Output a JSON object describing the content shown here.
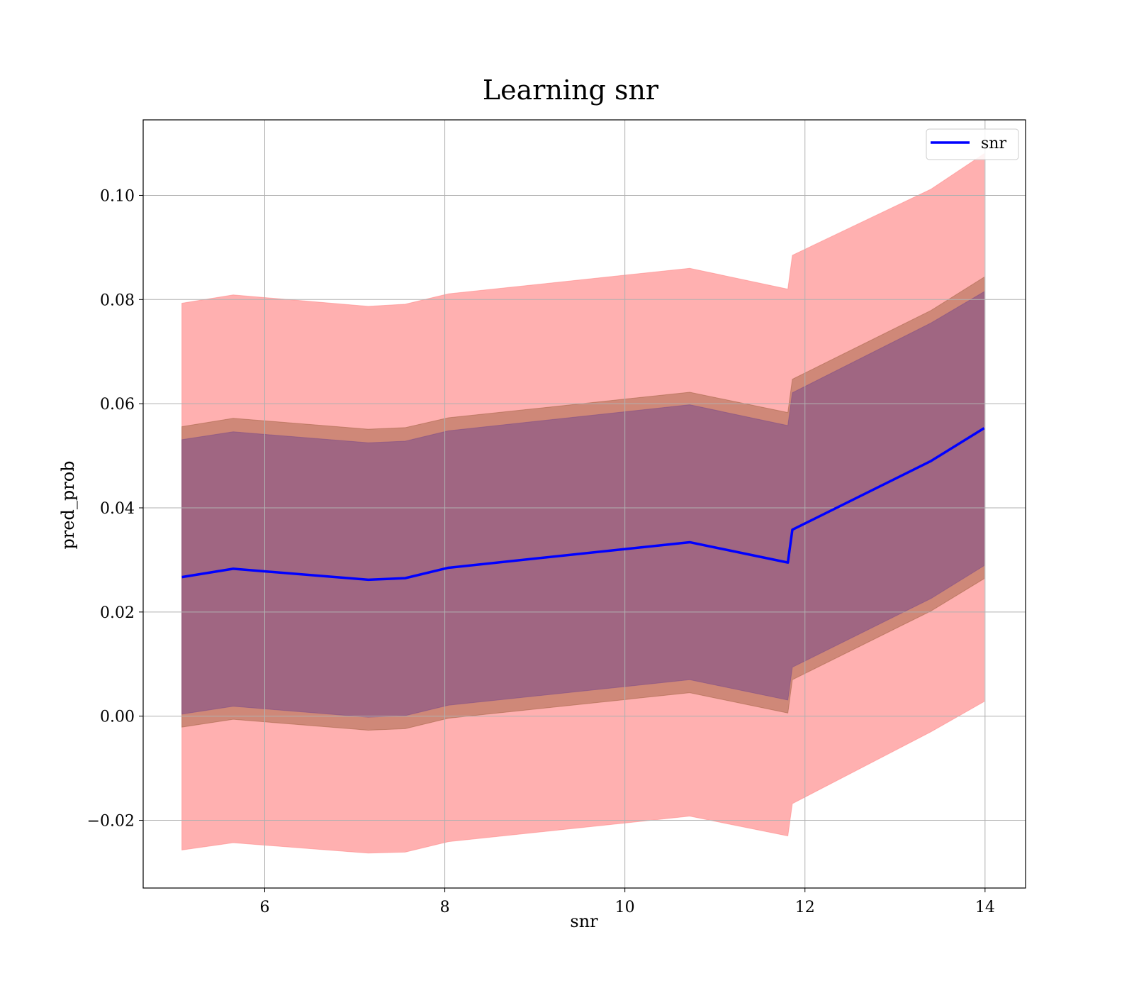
{
  "chart_data": {
    "type": "line",
    "title": "Learning snr",
    "xlabel": "snr",
    "ylabel": "pred_prob",
    "xlim": [
      4.65,
      14.45
    ],
    "ylim": [
      -0.033,
      0.1145
    ],
    "x_ticks": [
      6,
      8,
      10,
      12,
      14
    ],
    "x_tick_labels": [
      "6",
      "8",
      "10",
      "12",
      "14"
    ],
    "y_ticks": [
      -0.02,
      0.0,
      0.02,
      0.04,
      0.06,
      0.08,
      0.1
    ],
    "y_tick_labels": [
      "−0.02",
      "0.00",
      "0.02",
      "0.04",
      "0.06",
      "0.08",
      "0.10"
    ],
    "grid": true,
    "legend_position": "top-right",
    "x": [
      5.08,
      5.65,
      7.15,
      7.56,
      8.04,
      10.72,
      11.81,
      11.86,
      13.4,
      13.99
    ],
    "series": [
      {
        "name": "snr",
        "color": "#0000ff",
        "values": [
          0.0267,
          0.0283,
          0.0262,
          0.0265,
          0.0285,
          0.0334,
          0.0295,
          0.0358,
          0.049,
          0.0553
        ]
      }
    ],
    "bands": [
      {
        "color": "#ff8080",
        "opacity": 0.62,
        "upper": [
          0.0793,
          0.0809,
          0.0787,
          0.0791,
          0.0811,
          0.086,
          0.082,
          0.0885,
          0.1012,
          0.108
        ],
        "lower": [
          -0.0257,
          -0.0243,
          -0.0263,
          -0.0261,
          -0.0241,
          -0.0192,
          -0.023,
          -0.0168,
          -0.003,
          0.0028
        ]
      },
      {
        "color": "#a06040",
        "opacity": 0.5,
        "upper": [
          0.0556,
          0.0572,
          0.0551,
          0.0554,
          0.0573,
          0.0622,
          0.0583,
          0.0647,
          0.0779,
          0.0843
        ],
        "lower": [
          -0.0021,
          -0.0006,
          -0.0027,
          -0.0024,
          -0.0004,
          0.0045,
          0.0006,
          0.007,
          0.0202,
          0.0264
        ]
      },
      {
        "color": "#7a4a8a",
        "opacity": 0.55,
        "upper": [
          0.0531,
          0.0546,
          0.0525,
          0.0528,
          0.0548,
          0.0598,
          0.0558,
          0.0621,
          0.0755,
          0.0815
        ],
        "lower": [
          0.0004,
          0.0019,
          -0.0002,
          0.0001,
          0.0021,
          0.007,
          0.0031,
          0.0094,
          0.0226,
          0.0289
        ]
      }
    ]
  }
}
